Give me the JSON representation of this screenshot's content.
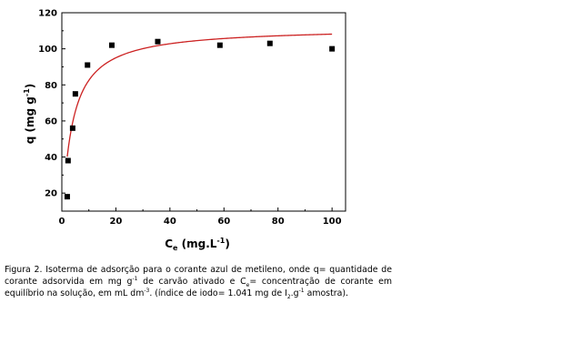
{
  "chart_data": {
    "type": "scatter",
    "xlim": [
      0,
      105
    ],
    "ylim": [
      10,
      120
    ],
    "xticks": [
      0,
      20,
      40,
      60,
      80,
      100
    ],
    "yticks": [
      20,
      40,
      60,
      80,
      100,
      120
    ],
    "grid": false,
    "ylabel": {
      "base": "q (mg g",
      "sup": "-1",
      "end": ")"
    },
    "xlabel": {
      "base": "C",
      "sub": "e",
      "mid": " (mg.L",
      "sup": "-1",
      "end": ")"
    },
    "series": [
      {
        "kind": "points",
        "marker": "square",
        "color": "#000000",
        "x": [
          2.0,
          2.3,
          4.0,
          5.0,
          9.5,
          18.5,
          35.5,
          58.5,
          77.0,
          100.0
        ],
        "y": [
          18,
          38,
          56,
          75,
          91,
          102,
          104,
          102,
          103,
          100
        ]
      },
      {
        "kind": "fit",
        "color": "#cc2222",
        "model": "langmuir",
        "qmax": 112,
        "K": 0.28,
        "x_start": 2.0,
        "x_end": 100.0
      }
    ]
  },
  "caption": {
    "p1": "Figura 2. Isoterma de adsorção para o corante azul de metileno, onde q= quantidade de corante adsorvida em mg g",
    "sup1": "-1",
    "p2": " de carvão ativado e C",
    "sub1": "e",
    "p3": "= concentração de corante em equilíbrio na solução, em mL dm",
    "sup2": "-3",
    "p4": ". (índice de iodo= 1.041 mg de I",
    "sub2": "2",
    "p5": ".g",
    "sup3": "-1",
    "p6": " amostra)."
  }
}
